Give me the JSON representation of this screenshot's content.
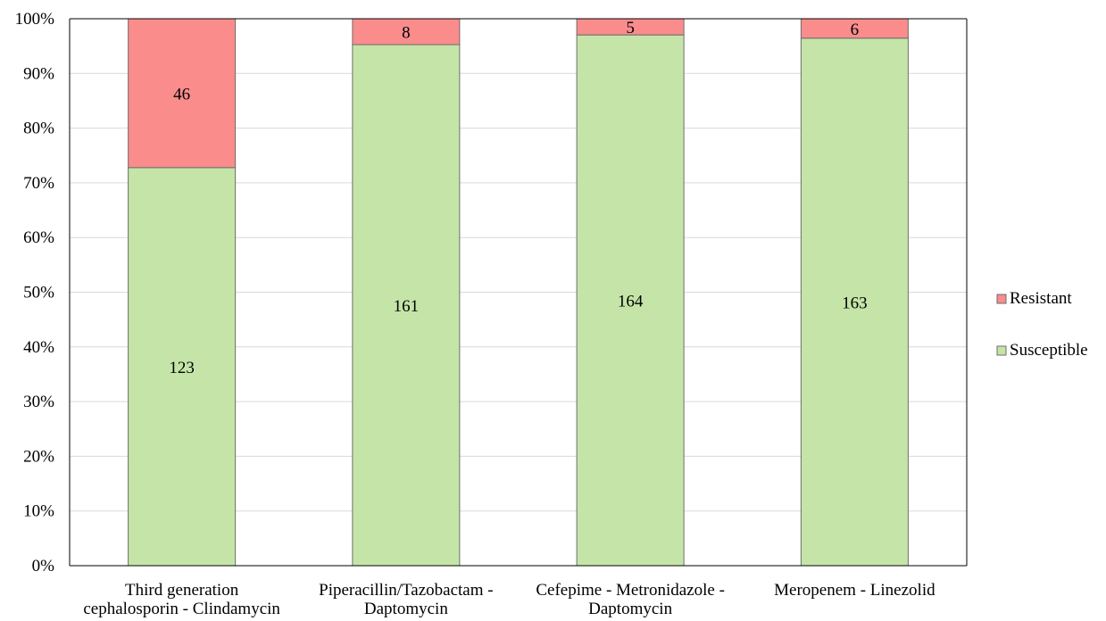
{
  "chart_data": {
    "type": "bar",
    "stacked": true,
    "normalized": true,
    "title": "",
    "xlabel": "",
    "ylabel": "",
    "ylim": [
      0,
      100
    ],
    "y_ticks": [
      "0%",
      "10%",
      "20%",
      "30%",
      "40%",
      "50%",
      "60%",
      "70%",
      "80%",
      "90%",
      "100%"
    ],
    "grid": true,
    "legend_position": "right",
    "categories": [
      [
        "Third generation",
        "cephalosporin - Clindamycin"
      ],
      [
        "Piperacillin/Tazobactam -",
        "Daptomycin"
      ],
      [
        "Cefepime - Metronidazole -",
        "Daptomycin"
      ],
      [
        "Meropenem - Linezolid"
      ]
    ],
    "series": [
      {
        "name": "Susceptible",
        "values": [
          123,
          161,
          164,
          163
        ],
        "color": "#c5e5a8"
      },
      {
        "name": "Resistant",
        "values": [
          46,
          8,
          5,
          6
        ],
        "color": "#fa8c8c"
      }
    ],
    "legend_order": [
      "Resistant",
      "Susceptible"
    ]
  }
}
